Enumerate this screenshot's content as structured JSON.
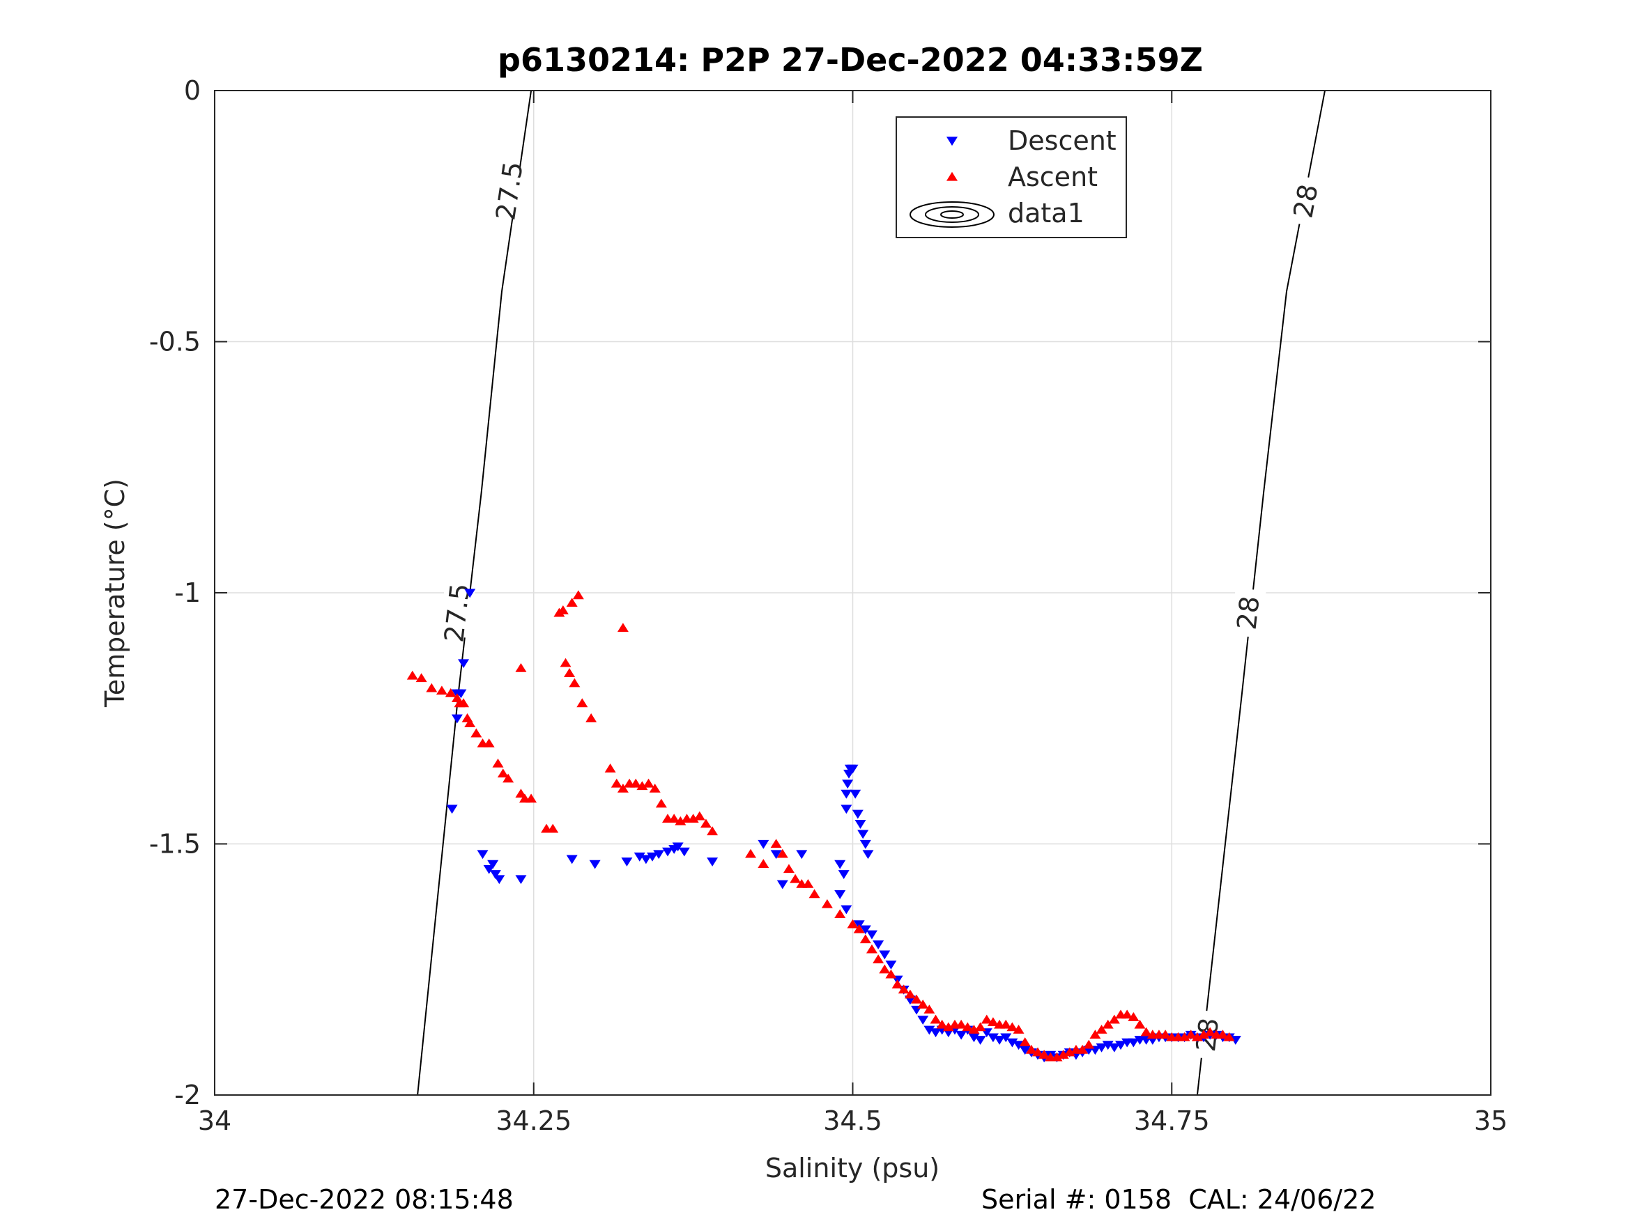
{
  "chart_data": {
    "type": "scatter",
    "title": "p6130214: P2P 27-Dec-2022 04:33:59Z",
    "xlabel": "Salinity (psu)",
    "ylabel": "Temperature (°C)",
    "xlim": [
      34,
      35
    ],
    "ylim": [
      -2,
      0
    ],
    "xticks": [
      34,
      34.25,
      34.5,
      34.75,
      35
    ],
    "xtick_labels": [
      "34",
      "34.25",
      "34.5",
      "34.75",
      "35"
    ],
    "yticks": [
      -2,
      -1.5,
      -1,
      -0.5,
      0
    ],
    "ytick_labels": [
      "-2",
      "-1.5",
      "-1",
      "-0.5",
      "0"
    ],
    "grid": true,
    "legend": {
      "placement": "top-right-inside",
      "entries": [
        {
          "name": "Descent",
          "marker": "triangle-down",
          "color": "#0000ff"
        },
        {
          "name": "Ascent",
          "marker": "triangle-up",
          "color": "#ff0000"
        },
        {
          "name": "data1",
          "marker": "contour",
          "color": "#000000"
        }
      ]
    },
    "contours": [
      {
        "label": "27.5",
        "points": [
          [
            34.159,
            -2.0
          ],
          [
            34.191,
            -1.2
          ],
          [
            34.209,
            -0.8
          ],
          [
            34.225,
            -0.4
          ],
          [
            34.248,
            0.0
          ]
        ],
        "label_positions": [
          [
            34.231,
            -0.2
          ],
          [
            34.19,
            -1.04
          ]
        ]
      },
      {
        "label": "28",
        "points": [
          [
            34.77,
            -2.0
          ],
          [
            34.805,
            -1.2
          ],
          [
            34.822,
            -0.8
          ],
          [
            34.84,
            -0.4
          ],
          [
            34.87,
            0.0
          ]
        ],
        "label_positions": [
          [
            34.855,
            -0.22
          ],
          [
            34.81,
            -1.04
          ],
          [
            34.778,
            -1.88
          ]
        ]
      }
    ],
    "series": [
      {
        "name": "Descent",
        "color": "#0000ff",
        "marker": "triangle-down",
        "x": [
          34.2,
          34.195,
          34.19,
          34.19,
          34.193,
          34.186,
          34.21,
          34.215,
          34.22,
          34.218,
          34.223,
          34.24,
          34.28,
          34.298,
          34.323,
          34.333,
          34.338,
          34.343,
          34.348,
          34.355,
          34.36,
          34.363,
          34.368,
          34.39,
          34.43,
          34.44,
          34.445,
          34.46,
          34.49,
          34.493,
          34.495,
          34.495,
          34.496,
          34.497,
          34.498,
          34.5,
          34.502,
          34.504,
          34.506,
          34.508,
          34.51,
          34.512,
          34.49,
          34.495,
          34.505,
          34.51,
          34.515,
          34.52,
          34.525,
          34.53,
          34.535,
          34.54,
          34.545,
          34.55,
          34.555,
          34.56,
          34.565,
          34.57,
          34.575,
          34.58,
          34.585,
          34.59,
          34.595,
          34.6,
          34.605,
          34.61,
          34.615,
          34.62,
          34.625,
          34.63,
          34.635,
          34.64,
          34.645,
          34.65,
          34.655,
          34.66,
          34.665,
          34.67,
          34.675,
          34.68,
          34.685,
          34.69,
          34.695,
          34.7,
          34.705,
          34.71,
          34.715,
          34.72,
          34.725,
          34.73,
          34.735,
          34.74,
          34.745,
          34.75,
          34.755,
          34.76,
          34.765,
          34.77,
          34.775,
          34.78,
          34.785,
          34.79,
          34.795,
          34.8
        ],
        "y": [
          -1.0,
          -1.14,
          -1.2,
          -1.25,
          -1.2,
          -1.43,
          -1.52,
          -1.55,
          -1.56,
          -1.54,
          -1.57,
          -1.57,
          -1.53,
          -1.54,
          -1.535,
          -1.525,
          -1.53,
          -1.525,
          -1.52,
          -1.515,
          -1.51,
          -1.505,
          -1.515,
          -1.535,
          -1.5,
          -1.52,
          -1.58,
          -1.52,
          -1.54,
          -1.56,
          -1.43,
          -1.4,
          -1.38,
          -1.36,
          -1.35,
          -1.35,
          -1.4,
          -1.44,
          -1.46,
          -1.48,
          -1.5,
          -1.52,
          -1.6,
          -1.63,
          -1.66,
          -1.67,
          -1.68,
          -1.7,
          -1.72,
          -1.74,
          -1.77,
          -1.79,
          -1.81,
          -1.83,
          -1.85,
          -1.87,
          -1.875,
          -1.87,
          -1.875,
          -1.87,
          -1.88,
          -1.87,
          -1.885,
          -1.89,
          -1.875,
          -1.885,
          -1.89,
          -1.885,
          -1.895,
          -1.9,
          -1.91,
          -1.915,
          -1.92,
          -1.925,
          -1.92,
          -1.925,
          -1.92,
          -1.915,
          -1.92,
          -1.915,
          -1.91,
          -1.91,
          -1.905,
          -1.9,
          -1.905,
          -1.9,
          -1.895,
          -1.895,
          -1.89,
          -1.89,
          -1.89,
          -1.885,
          -1.885,
          -1.885,
          -1.885,
          -1.885,
          -1.88,
          -1.885,
          -1.885,
          -1.88,
          -1.88,
          -1.885,
          -1.885,
          -1.89
        ]
      },
      {
        "name": "Ascent",
        "color": "#ff0000",
        "marker": "triangle-up",
        "x": [
          34.155,
          34.162,
          34.17,
          34.178,
          34.185,
          34.19,
          34.192,
          34.195,
          34.198,
          34.2,
          34.205,
          34.21,
          34.215,
          34.222,
          34.226,
          34.23,
          34.24,
          34.243,
          34.248,
          34.26,
          34.265,
          34.27,
          34.273,
          34.28,
          34.285,
          34.24,
          34.275,
          34.278,
          34.282,
          34.288,
          34.295,
          34.31,
          34.315,
          34.32,
          34.325,
          34.33,
          34.335,
          34.34,
          34.345,
          34.35,
          34.355,
          34.36,
          34.365,
          34.37,
          34.375,
          34.38,
          34.385,
          34.39,
          34.32,
          34.42,
          34.43,
          34.44,
          34.445,
          34.45,
          34.455,
          34.46,
          34.465,
          34.47,
          34.48,
          34.49,
          34.5,
          34.505,
          34.51,
          34.515,
          34.52,
          34.525,
          34.53,
          34.535,
          34.54,
          34.545,
          34.55,
          34.555,
          34.56,
          34.565,
          34.57,
          34.575,
          34.58,
          34.585,
          34.59,
          34.595,
          34.6,
          34.605,
          34.61,
          34.615,
          34.62,
          34.625,
          34.63,
          34.635,
          34.64,
          34.645,
          34.65,
          34.655,
          34.66,
          34.665,
          34.67,
          34.675,
          34.68,
          34.685,
          34.69,
          34.695,
          34.7,
          34.705,
          34.71,
          34.715,
          34.72,
          34.725,
          34.73,
          34.735,
          34.74,
          34.745,
          34.75,
          34.755,
          34.76,
          34.765,
          34.77,
          34.775,
          34.78,
          34.785,
          34.79,
          34.795
        ],
        "y": [
          -1.165,
          -1.17,
          -1.19,
          -1.195,
          -1.2,
          -1.21,
          -1.22,
          -1.22,
          -1.25,
          -1.26,
          -1.28,
          -1.3,
          -1.3,
          -1.34,
          -1.36,
          -1.37,
          -1.4,
          -1.41,
          -1.41,
          -1.47,
          -1.47,
          -1.04,
          -1.035,
          -1.02,
          -1.005,
          -1.15,
          -1.14,
          -1.16,
          -1.18,
          -1.22,
          -1.25,
          -1.35,
          -1.38,
          -1.39,
          -1.38,
          -1.38,
          -1.385,
          -1.38,
          -1.39,
          -1.42,
          -1.45,
          -1.45,
          -1.455,
          -1.45,
          -1.45,
          -1.445,
          -1.46,
          -1.475,
          -1.07,
          -1.52,
          -1.54,
          -1.5,
          -1.52,
          -1.55,
          -1.57,
          -1.58,
          -1.58,
          -1.6,
          -1.62,
          -1.64,
          -1.66,
          -1.67,
          -1.69,
          -1.71,
          -1.73,
          -1.75,
          -1.76,
          -1.78,
          -1.79,
          -1.8,
          -1.81,
          -1.82,
          -1.83,
          -1.85,
          -1.86,
          -1.865,
          -1.86,
          -1.86,
          -1.865,
          -1.87,
          -1.865,
          -1.85,
          -1.855,
          -1.86,
          -1.86,
          -1.865,
          -1.87,
          -1.895,
          -1.91,
          -1.915,
          -1.92,
          -1.925,
          -1.925,
          -1.92,
          -1.915,
          -1.91,
          -1.91,
          -1.9,
          -1.88,
          -1.87,
          -1.86,
          -1.85,
          -1.84,
          -1.84,
          -1.845,
          -1.86,
          -1.875,
          -1.88,
          -1.88,
          -1.88,
          -1.885,
          -1.885,
          -1.885,
          -1.88,
          -1.885,
          -1.88,
          -1.875,
          -1.88,
          -1.88,
          -1.885
        ]
      }
    ]
  },
  "footer": {
    "left": "27-Dec-2022 08:15:48",
    "right": "Serial #: 0158  CAL: 24/06/22"
  }
}
